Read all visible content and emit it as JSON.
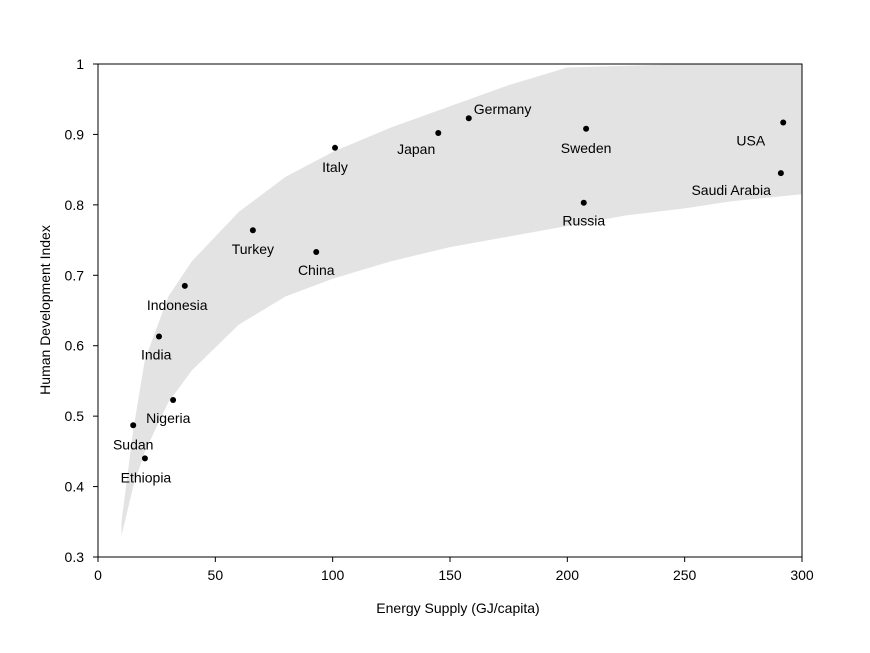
{
  "chart_data": {
    "type": "scatter",
    "title": "",
    "xlabel": "Energy Supply (GJ/capita)",
    "ylabel": "Human Development Index",
    "xlim": [
      0,
      300
    ],
    "ylim": [
      0.3,
      1.0
    ],
    "xticks": [
      "0",
      "50",
      "100",
      "150",
      "200",
      "250",
      "300"
    ],
    "yticks": [
      "0.3",
      "0.4",
      "0.5",
      "0.6",
      "0.7",
      "0.8",
      "0.9",
      "1"
    ],
    "grid": false,
    "legend": "none",
    "band": {
      "description_color": "#e3e3e3",
      "upper": [
        [
          10,
          0.35
        ],
        [
          15,
          0.48
        ],
        [
          20,
          0.58
        ],
        [
          30,
          0.67
        ],
        [
          40,
          0.72
        ],
        [
          60,
          0.79
        ],
        [
          80,
          0.84
        ],
        [
          100,
          0.875
        ],
        [
          125,
          0.91
        ],
        [
          150,
          0.94
        ],
        [
          175,
          0.97
        ],
        [
          200,
          0.995
        ],
        [
          250,
          1.0
        ],
        [
          300,
          1.0
        ]
      ],
      "lower": [
        [
          300,
          0.815
        ],
        [
          270,
          0.805
        ],
        [
          250,
          0.795
        ],
        [
          225,
          0.785
        ],
        [
          200,
          0.77
        ],
        [
          150,
          0.74
        ],
        [
          125,
          0.72
        ],
        [
          100,
          0.695
        ],
        [
          80,
          0.67
        ],
        [
          60,
          0.63
        ],
        [
          40,
          0.565
        ],
        [
          30,
          0.52
        ],
        [
          20,
          0.45
        ],
        [
          15,
          0.4
        ],
        [
          10,
          0.33
        ]
      ]
    },
    "points": [
      {
        "label": "Sudan",
        "x": 15,
        "y": 0.487,
        "anchor": "middle",
        "dx": 0,
        "dy": 24
      },
      {
        "label": "Ethiopia",
        "x": 20,
        "y": 0.44,
        "anchor": "middle",
        "dx": 1,
        "dy": 24
      },
      {
        "label": "Nigeria",
        "x": 32,
        "y": 0.523,
        "anchor": "start",
        "dx": -27,
        "dy": 23
      },
      {
        "label": "India",
        "x": 26,
        "y": 0.613,
        "anchor": "start",
        "dx": -18,
        "dy": 23
      },
      {
        "label": "Indonesia",
        "x": 37,
        "y": 0.685,
        "anchor": "start",
        "dx": -38,
        "dy": 24
      },
      {
        "label": "Turkey",
        "x": 66,
        "y": 0.764,
        "anchor": "middle",
        "dx": 0,
        "dy": 24
      },
      {
        "label": "China",
        "x": 93,
        "y": 0.733,
        "anchor": "middle",
        "dx": 0,
        "dy": 23
      },
      {
        "label": "Italy",
        "x": 101,
        "y": 0.881,
        "anchor": "middle",
        "dx": 0,
        "dy": 24
      },
      {
        "label": "Japan",
        "x": 145,
        "y": 0.902,
        "anchor": "end",
        "dx": -3,
        "dy": 21
      },
      {
        "label": "Germany",
        "x": 158,
        "y": 0.923,
        "anchor": "start",
        "dx": 5,
        "dy": -4
      },
      {
        "label": "Sweden",
        "x": 208,
        "y": 0.908,
        "anchor": "middle",
        "dx": 0,
        "dy": 24
      },
      {
        "label": "Russia",
        "x": 207,
        "y": 0.803,
        "anchor": "middle",
        "dx": 0,
        "dy": 23
      },
      {
        "label": "USA",
        "x": 292,
        "y": 0.917,
        "anchor": "end",
        "dx": -18,
        "dy": 23
      },
      {
        "label": "Saudi Arabia",
        "x": 291,
        "y": 0.845,
        "anchor": "end",
        "dx": -10,
        "dy": 22
      }
    ]
  }
}
